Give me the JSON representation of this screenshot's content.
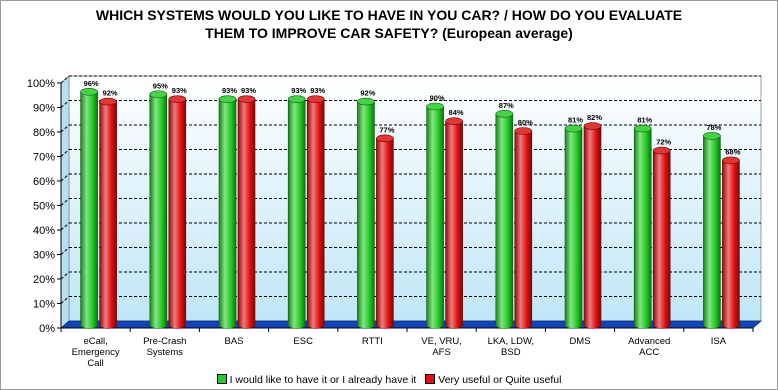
{
  "chart_data": {
    "type": "bar",
    "title_line1": "WHICH SYSTEMS WOULD YOU LIKE TO HAVE IN YOU CAR? / HOW DO YOU EVALUATE",
    "title_line2": "THEM TO IMPROVE CAR SAFETY? (European average)",
    "y_ticks": [
      "0%",
      "10%",
      "20%",
      "30%",
      "40%",
      "50%",
      "60%",
      "70%",
      "80%",
      "90%",
      "100%"
    ],
    "ylim": [
      0,
      100
    ],
    "grid": "horizontal dashed",
    "legend_position": "bottom",
    "categories": [
      [
        "eCall,",
        "Emergency",
        "Call"
      ],
      [
        "Pre-Crash",
        "Systems"
      ],
      [
        "BAS"
      ],
      [
        "ESC"
      ],
      [
        "RTTI"
      ],
      [
        "VE, VRU,",
        "AFS"
      ],
      [
        "LKA, LDW,",
        "BSD"
      ],
      [
        "DMS"
      ],
      [
        "Advanced",
        "ACC"
      ],
      [
        "ISA"
      ]
    ],
    "series": [
      {
        "name": "I would like to have it or I already have it",
        "color": "#22cc22",
        "values": [
          96,
          95,
          93,
          93,
          92,
          90,
          87,
          81,
          81,
          78
        ],
        "labels": [
          "96%",
          "95%",
          "93%",
          "93%",
          "92%",
          "90%",
          "87%",
          "81%",
          "81%",
          "78%"
        ]
      },
      {
        "name": "Very useful or Quite useful",
        "color": "#e01010",
        "values": [
          92,
          93,
          93,
          93,
          77,
          84,
          80,
          82,
          72,
          68
        ],
        "labels": [
          "92%",
          "93%",
          "93%",
          "93%",
          "77%",
          "84%",
          "80%",
          "82%",
          "72%",
          "68%"
        ]
      }
    ]
  }
}
